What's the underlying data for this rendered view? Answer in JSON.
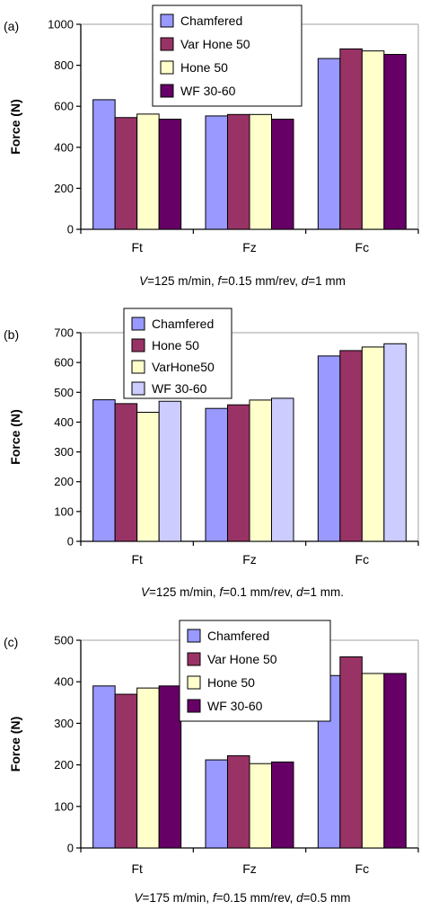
{
  "chart_data": [
    {
      "panel": "(a)",
      "type": "bar",
      "categories": [
        "Ft",
        "Fz",
        "Fc"
      ],
      "ylabel": "Force (N)",
      "ylim": [
        0,
        1000
      ],
      "yticks": [
        0,
        200,
        400,
        600,
        800,
        1000
      ],
      "grid": false,
      "legend_position": "top-center",
      "caption": {
        "v": "V",
        "v_val": "=125 m/min, ",
        "f": "f",
        "f_val": "=0.15 mm/rev, ",
        "d": "d",
        "d_val": "=1 mm"
      },
      "series": [
        {
          "name": "Chamfered",
          "color": "#9999ff",
          "values": [
            632,
            553,
            833
          ]
        },
        {
          "name": "Var Hone 50",
          "color": "#993366",
          "values": [
            545,
            560,
            880
          ]
        },
        {
          "name": "Hone 50",
          "color": "#ffffcc",
          "values": [
            562,
            560,
            870
          ]
        },
        {
          "name": "WF 30-60",
          "color": "#660066",
          "values": [
            537,
            537,
            853
          ]
        }
      ]
    },
    {
      "panel": "(b)",
      "type": "bar",
      "categories": [
        "Ft",
        "Fz",
        "Fc"
      ],
      "ylabel": "Force (N)",
      "ylim": [
        0,
        700
      ],
      "yticks": [
        0,
        100,
        200,
        300,
        400,
        500,
        600,
        700
      ],
      "grid": false,
      "legend_position": "top-left",
      "caption": {
        "v": "V",
        "v_val": "=125 m/min, ",
        "f": "f",
        "f_val": "=0.1 mm/rev, ",
        "d": "d",
        "d_val": "=1 mm."
      },
      "series": [
        {
          "name": "Chamfered",
          "color": "#9999ff",
          "values": [
            475,
            446,
            622
          ]
        },
        {
          "name": "Hone 50",
          "color": "#993366",
          "values": [
            462,
            458,
            640
          ]
        },
        {
          "name": "VarHone50",
          "color": "#ffffcc",
          "values": [
            433,
            474,
            652
          ]
        },
        {
          "name": "WF 30-60",
          "color": "#ccccff",
          "values": [
            470,
            480,
            663
          ]
        }
      ]
    },
    {
      "panel": "(c)",
      "type": "bar",
      "categories": [
        "Ft",
        "Fz",
        "Fc"
      ],
      "ylabel": "Force (N)",
      "ylim": [
        0,
        500
      ],
      "yticks": [
        0,
        100,
        200,
        300,
        400,
        500
      ],
      "grid": false,
      "legend_position": "top-center",
      "caption": {
        "v": "V",
        "v_val": "=175 m/min, ",
        "f": "f",
        "f_val": "=0.15 mm/rev, ",
        "d": "d",
        "d_val": "=0.5 mm"
      },
      "series": [
        {
          "name": "Chamfered",
          "color": "#9999ff",
          "values": [
            390,
            212,
            415
          ]
        },
        {
          "name": "Var Hone 50",
          "color": "#993366",
          "values": [
            370,
            222,
            460
          ]
        },
        {
          "name": "Hone 50",
          "color": "#ffffcc",
          "values": [
            385,
            203,
            420
          ]
        },
        {
          "name": "WF 30-60",
          "color": "#660066",
          "values": [
            390,
            207,
            420
          ]
        }
      ]
    }
  ]
}
